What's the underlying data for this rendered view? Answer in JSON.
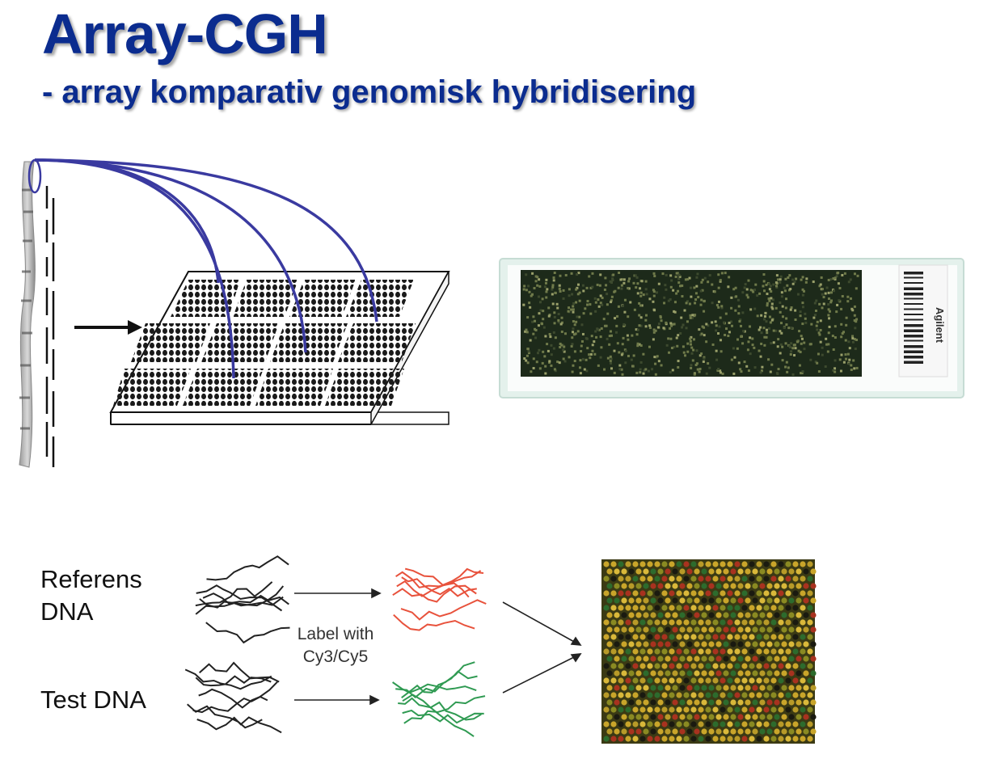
{
  "header": {
    "title": "Array-CGH",
    "subtitle": "- array komparativ genomisk hybridisering"
  },
  "slide": {
    "brand_text": "Agilent"
  },
  "workflow": {
    "reference_label": "Referens DNA",
    "reference_line1": "Referens",
    "reference_line2": "DNA",
    "test_label": "Test DNA",
    "label_step_line1": "Label with",
    "label_step_line2": "Cy3/Cy5"
  },
  "colors": {
    "title": "#0b2c8f",
    "probe_lines": "#3a3aa0",
    "reference_dna_labeled": "#e8523c",
    "test_dna_labeled": "#2f9a52",
    "array_green": "#2d6b2d",
    "array_yellow": "#c9a52a",
    "array_red": "#a8321f"
  },
  "icons": {
    "chromosome": "chromosome-icon",
    "microarray_grid": "microarray-grid-icon",
    "microarray_slide": "microarray-slide-icon",
    "dna_strand": "dna-strand-icon",
    "hybridized_array": "hybridized-array-icon"
  }
}
